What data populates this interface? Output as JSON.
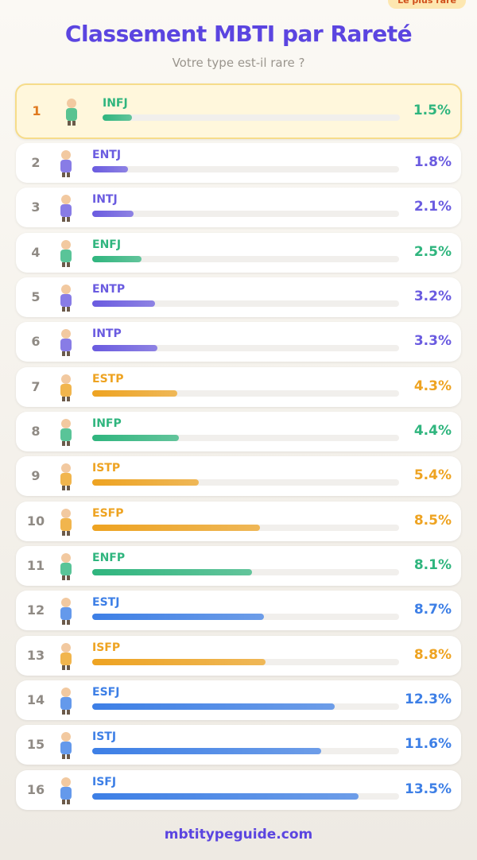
{
  "badge": "Le plus rare",
  "chart_data": {
    "type": "bar",
    "orientation": "horizontal",
    "title": "Classement MBTI par Rareté",
    "subtitle": "Votre type est-il rare ?",
    "ranks": [
      1,
      2,
      3,
      4,
      5,
      6,
      7,
      8,
      9,
      10,
      11,
      12,
      13,
      14,
      15,
      16
    ],
    "categories": [
      "INFJ",
      "ENTJ",
      "INTJ",
      "ENFJ",
      "ENTP",
      "INTP",
      "ESTP",
      "INFP",
      "ISTP",
      "ESFP",
      "ENFP",
      "ESTJ",
      "ISFP",
      "ESFJ",
      "ISTJ",
      "ISFJ"
    ],
    "values": [
      1.5,
      1.8,
      2.1,
      2.5,
      3.2,
      3.3,
      4.3,
      4.4,
      5.4,
      8.5,
      8.1,
      8.7,
      8.8,
      12.3,
      11.6,
      13.5
    ],
    "value_labels": [
      "1.5%",
      "1.8%",
      "2.1%",
      "2.5%",
      "3.2%",
      "3.3%",
      "4.3%",
      "4.4%",
      "5.4%",
      "8.5%",
      "8.1%",
      "8.7%",
      "8.8%",
      "12.3%",
      "11.6%",
      "13.5%"
    ],
    "colors": [
      "#2fb57e",
      "#6a5be0",
      "#6a5be0",
      "#2fb57e",
      "#6a5be0",
      "#6a5be0",
      "#eea321",
      "#2fb57e",
      "#eea321",
      "#eea321",
      "#2fb57e",
      "#3d7fe6",
      "#eea321",
      "#3d7fe6",
      "#3d7fe6",
      "#3d7fe6"
    ]
  },
  "footer": "mbtitypeguide.com"
}
